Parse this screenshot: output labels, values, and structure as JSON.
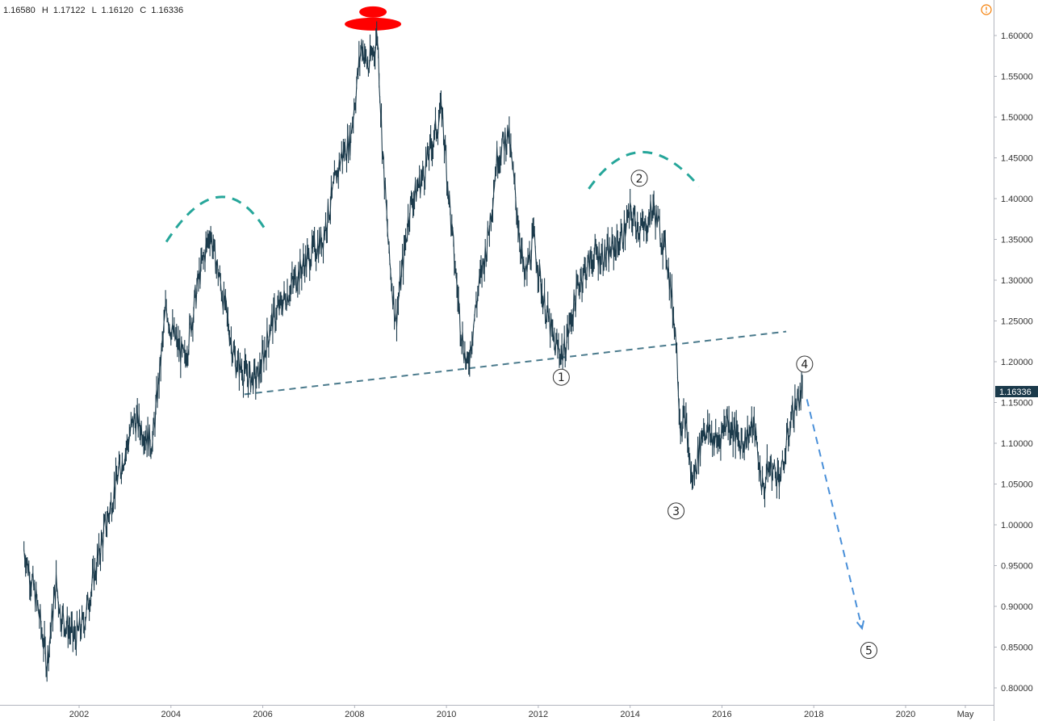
{
  "ohlc_header": {
    "open_value": "1.16580",
    "high_label": "H",
    "high_value": "1.17122",
    "low_label": "L",
    "low_value": "1.16120",
    "close_label": "C",
    "close_value": "1.16336"
  },
  "alert_icon": "info-circle-icon",
  "colors": {
    "price_line": "#1b3a4b",
    "arc": "#26a69a",
    "neckline": "#4a7a8c",
    "projection": "#4a90d9",
    "top_marker": "#ff0000",
    "last_price_bg": "#1b3a4b",
    "axis_border": "#b2b5be"
  },
  "chart_data": {
    "type": "line",
    "ylim": [
      0.78,
      1.63
    ],
    "xlim": [
      2000.8,
      2021.6
    ],
    "y_tick_labels": [
      "1.60000",
      "1.55000",
      "1.50000",
      "1.45000",
      "1.40000",
      "1.35000",
      "1.30000",
      "1.25000",
      "1.20000",
      "1.15000",
      "1.10000",
      "1.05000",
      "1.00000",
      "0.95000",
      "0.90000",
      "0.85000",
      "0.80000"
    ],
    "y_ticks": [
      1.6,
      1.55,
      1.5,
      1.45,
      1.4,
      1.35,
      1.3,
      1.25,
      1.2,
      1.15,
      1.1,
      1.05,
      1.0,
      0.95,
      0.9,
      0.85,
      0.8
    ],
    "x_tick_labels": [
      "2002",
      "2004",
      "2006",
      "2008",
      "2010",
      "2012",
      "2014",
      "2016",
      "2018",
      "2020",
      "May"
    ],
    "x_ticks": [
      2002,
      2004,
      2006,
      2008,
      2010,
      2012,
      2014,
      2016,
      2018,
      2020,
      2021.3
    ],
    "last_price_label": "1.16336",
    "last_price": 1.16336,
    "series": [
      {
        "x": [
          2000.8,
          2001.1,
          2001.3,
          2001.5,
          2001.6,
          2001.9,
          2002.1,
          2002.5,
          2002.8,
          2003.2,
          2003.6,
          2003.9,
          2004.0,
          2004.3,
          2004.6,
          2004.85,
          2005.1,
          2005.4,
          2005.7,
          2005.9,
          2006.2,
          2006.5,
          2006.9,
          2007.3,
          2007.7,
          2007.9,
          2008.15,
          2008.3,
          2008.5,
          2008.6,
          2008.75,
          2008.9,
          2009.2,
          2009.5,
          2009.9,
          2010.1,
          2010.3,
          2010.45,
          2010.7,
          2010.9,
          2011.1,
          2011.35,
          2011.7,
          2011.9,
          2012.1,
          2012.35,
          2012.55,
          2012.9,
          2013.2,
          2013.5,
          2013.8,
          2014.0,
          2014.3,
          2014.5,
          2014.8,
          2015.0,
          2015.1,
          2015.2,
          2015.35,
          2015.6,
          2015.9,
          2016.1,
          2016.4,
          2016.7,
          2016.9,
          2017.0,
          2017.3,
          2017.5,
          2017.7,
          2017.75
        ],
        "values": [
          0.97,
          0.9,
          0.83,
          0.93,
          0.89,
          0.86,
          0.88,
          0.98,
          1.05,
          1.13,
          1.1,
          1.27,
          1.24,
          1.2,
          1.3,
          1.36,
          1.29,
          1.2,
          1.18,
          1.18,
          1.25,
          1.28,
          1.32,
          1.35,
          1.45,
          1.47,
          1.59,
          1.56,
          1.6,
          1.47,
          1.33,
          1.25,
          1.39,
          1.43,
          1.51,
          1.37,
          1.25,
          1.19,
          1.29,
          1.35,
          1.45,
          1.48,
          1.3,
          1.35,
          1.28,
          1.22,
          1.21,
          1.3,
          1.33,
          1.33,
          1.35,
          1.38,
          1.36,
          1.39,
          1.33,
          1.23,
          1.12,
          1.13,
          1.05,
          1.12,
          1.1,
          1.13,
          1.1,
          1.12,
          1.04,
          1.07,
          1.06,
          1.13,
          1.16,
          1.163
        ]
      }
    ],
    "annotations": [
      {
        "label": "1",
        "x": 2012.5,
        "y": 1.181
      },
      {
        "label": "2",
        "x": 2014.2,
        "y": 1.425
      },
      {
        "label": "3",
        "x": 2015.0,
        "y": 1.017
      },
      {
        "label": "4",
        "x": 2017.8,
        "y": 1.197
      },
      {
        "label": "5",
        "x": 2019.2,
        "y": 0.846
      }
    ],
    "shoulder_arcs": [
      {
        "x": [
          2003.9,
          2005.1,
          2006.1
        ],
        "y": [
          1.347,
          1.402,
          1.358
        ]
      },
      {
        "x": [
          2013.1,
          2014.2,
          2015.5
        ],
        "y": [
          1.412,
          1.457,
          1.415
        ]
      }
    ],
    "neckline": {
      "x": [
        2005.6,
        2017.4
      ],
      "y": [
        1.16,
        1.237
      ]
    },
    "projection": {
      "x": [
        2017.85,
        2019.05
      ],
      "y": [
        1.154,
        0.873
      ]
    },
    "top_marker": {
      "x": 2008.4,
      "y": 1.615
    }
  }
}
